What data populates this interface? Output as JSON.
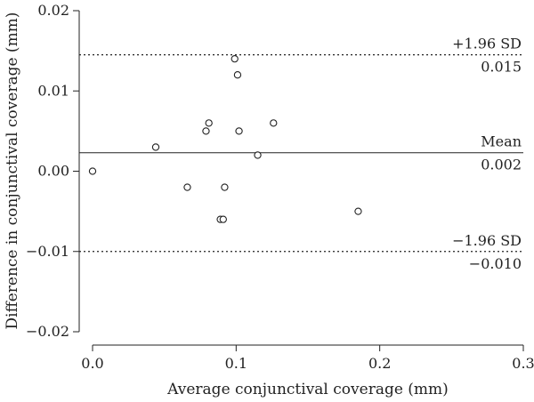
{
  "chart_data": {
    "type": "scatter",
    "xlabel": "Average conjunctival coverage (mm)",
    "ylabel": "Difference in conjunctival coverage (mm)",
    "xlim": [
      0.0,
      0.3
    ],
    "ylim": [
      -0.02,
      0.02
    ],
    "x_ticks": [
      "0.0",
      "0.1",
      "0.2",
      "0.3"
    ],
    "y_ticks": [
      "−0.02",
      "−0.01",
      "0.00",
      "0.01",
      "0.02"
    ],
    "grid": false,
    "points": [
      {
        "x": 0.0,
        "y": 0.0
      },
      {
        "x": 0.044,
        "y": 0.003
      },
      {
        "x": 0.066,
        "y": -0.002
      },
      {
        "x": 0.079,
        "y": 0.005
      },
      {
        "x": 0.081,
        "y": 0.006
      },
      {
        "x": 0.089,
        "y": -0.006
      },
      {
        "x": 0.091,
        "y": -0.006
      },
      {
        "x": 0.092,
        "y": -0.002
      },
      {
        "x": 0.099,
        "y": 0.014
      },
      {
        "x": 0.101,
        "y": 0.012
      },
      {
        "x": 0.102,
        "y": 0.005
      },
      {
        "x": 0.115,
        "y": 0.002
      },
      {
        "x": 0.126,
        "y": 0.006
      },
      {
        "x": 0.185,
        "y": -0.005
      }
    ],
    "reference_lines": [
      {
        "name": "+1.96 SD",
        "value_label": "0.015",
        "y": 0.0145,
        "style": "dotted"
      },
      {
        "name": "Mean",
        "value_label": "0.002",
        "y": 0.0023,
        "style": "solid"
      },
      {
        "name": "−1.96 SD",
        "value_label": "−0.010",
        "y": -0.01,
        "style": "dotted"
      }
    ]
  }
}
